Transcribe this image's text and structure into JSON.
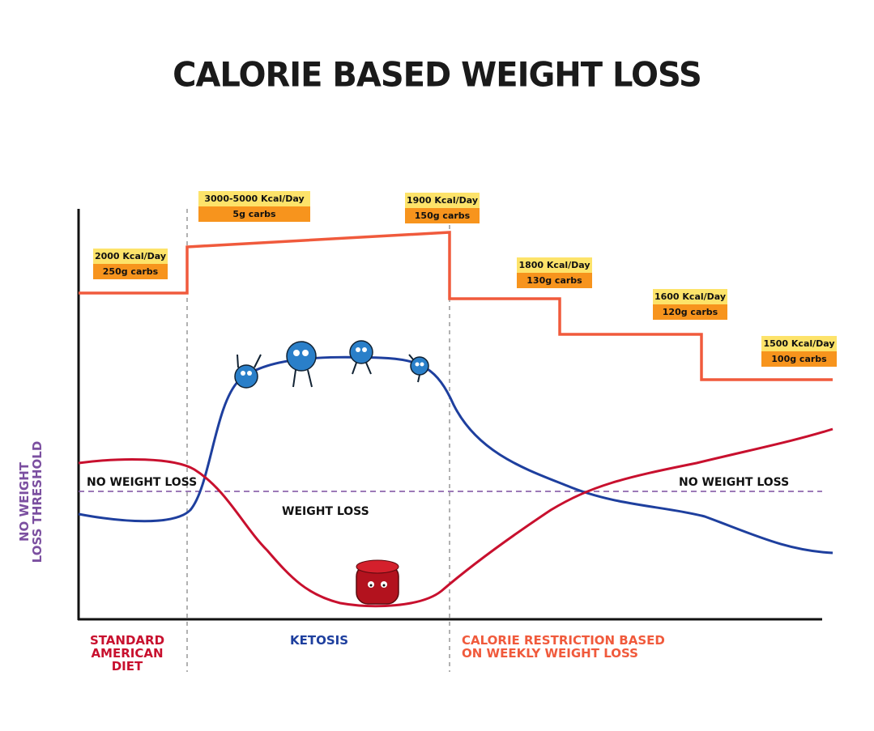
{
  "title": "CALORIE BASED WEIGHT LOSS",
  "phase_boxes": [
    {
      "kcal": "2000 Kcal/Day",
      "carbs": "250g carbs"
    },
    {
      "kcal": "3000-5000 Kcal/Day",
      "carbs": "5g carbs"
    },
    {
      "kcal": "1900 Kcal/Day",
      "carbs": "150g carbs"
    },
    {
      "kcal": "1800 Kcal/Day",
      "carbs": "130g carbs"
    },
    {
      "kcal": "1600 Kcal/Day",
      "carbs": "120g carbs"
    },
    {
      "kcal": "1500 Kcal/Day",
      "carbs": "100g carbs"
    }
  ],
  "labels": {
    "no_weight_loss_left": "NO WEIGHT LOSS",
    "no_weight_loss_right": "NO WEIGHT LOSS",
    "weight_loss": "WEIGHT LOSS",
    "threshold_line1": "NO WEIGHT",
    "threshold_line2": "LOSS THRESHOLD"
  },
  "phases": {
    "sad": [
      "STANDARD",
      "AMERICAN",
      "DIET"
    ],
    "ketosis": "KETOSIS",
    "restriction": [
      "CALORIE RESTRICTION BASED",
      "ON WEEKLY WEIGHT LOSS"
    ]
  },
  "colors": {
    "calories": "#f05a3c",
    "ketones": "#1e3f9e",
    "glucose": "#c8102e",
    "threshold": "#7b4fa0",
    "kcal_box": "#fde36a",
    "carb_box": "#f7941d"
  }
}
